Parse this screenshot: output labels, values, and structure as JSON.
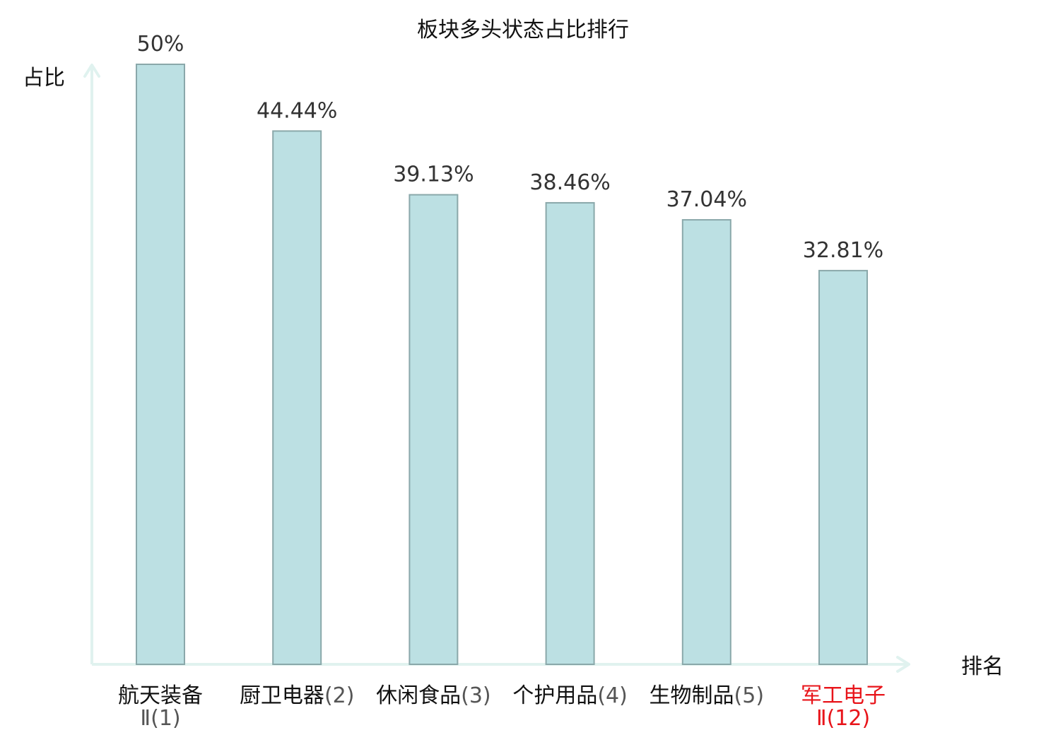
{
  "chart_data": {
    "type": "bar",
    "title": "板块多头状态占比排行",
    "ylabel": "占比",
    "xlabel": "排名",
    "categories": [
      {
        "name": "航天装备",
        "rank": "Ⅱ(1)",
        "wrap": true,
        "highlight": false
      },
      {
        "name": "厨卫电器",
        "rank": "(2)",
        "wrap": false,
        "highlight": false
      },
      {
        "name": "休闲食品",
        "rank": "(3)",
        "wrap": false,
        "highlight": false
      },
      {
        "name": "个护用品",
        "rank": "(4)",
        "wrap": false,
        "highlight": false
      },
      {
        "name": "生物制品",
        "rank": "(5)",
        "wrap": false,
        "highlight": false
      },
      {
        "name": "军工电子",
        "rank": "Ⅱ(12)",
        "wrap": true,
        "highlight": true
      }
    ],
    "values": [
      50,
      44.44,
      39.13,
      38.46,
      37.04,
      32.81
    ],
    "value_labels": [
      "50%",
      "44.44%",
      "39.13%",
      "38.46%",
      "37.04%",
      "32.81%"
    ],
    "ylim": [
      0,
      50
    ],
    "grid": false,
    "colors": {
      "bar_fill": "#bce0e3",
      "bar_stroke": "#8aa8aa",
      "axis": "#e0f2ef",
      "highlight": "#e8141a",
      "text": "#111111",
      "value_text": "#333333"
    }
  }
}
